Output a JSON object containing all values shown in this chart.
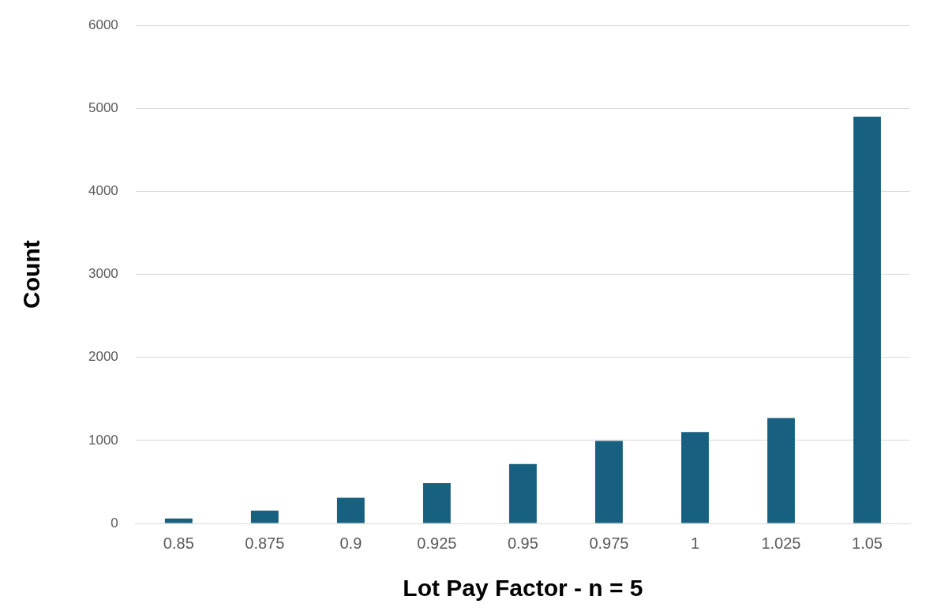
{
  "chart_data": {
    "type": "bar",
    "xlabel": "Lot Pay Factor - n = 5",
    "ylabel": "Count",
    "categories": [
      "0.85",
      "0.875",
      "0.9",
      "0.925",
      "0.95",
      "0.975",
      "1",
      "1.025",
      "1.05"
    ],
    "values": [
      60,
      155,
      310,
      485,
      715,
      995,
      1100,
      1270,
      4900
    ],
    "color": "#17607f",
    "ylim": [
      0,
      6000
    ],
    "yticks": [
      0,
      1000,
      2000,
      3000,
      4000,
      5000,
      6000
    ],
    "grid": "y",
    "legend": false
  }
}
